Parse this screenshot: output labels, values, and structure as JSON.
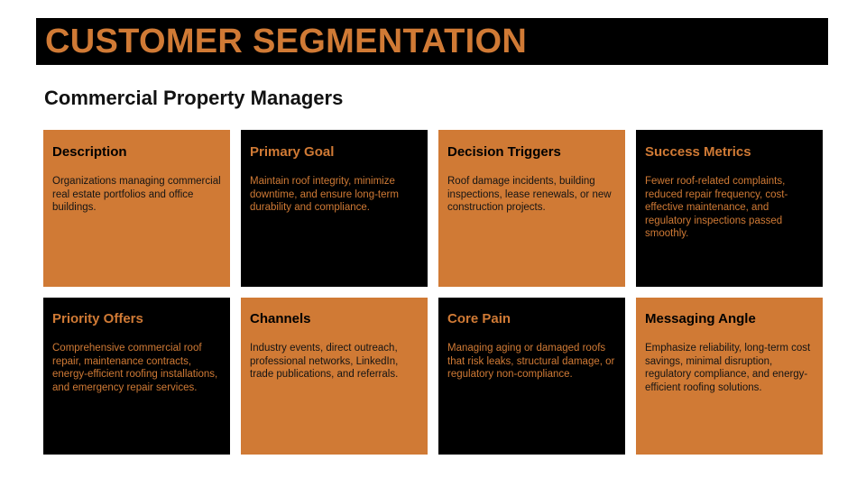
{
  "title": "CUSTOMER SEGMENTATION",
  "subtitle": "Commercial Property Managers",
  "colors": {
    "accent": "#D07A35",
    "dark": "#000000",
    "background": "#FFFFFF"
  },
  "cards": [
    {
      "heading": "Description",
      "body": "Organizations managing commercial real estate portfolios and office buildings."
    },
    {
      "heading": "Primary Goal",
      "body": "Maintain roof integrity, minimize downtime, and ensure long-term durability and compliance."
    },
    {
      "heading": "Decision Triggers",
      "body": "Roof damage incidents, building inspections, lease renewals, or new construction projects."
    },
    {
      "heading": "Success Metrics",
      "body": "Fewer roof-related complaints, reduced repair frequency, cost-effective maintenance, and regulatory inspections passed smoothly."
    },
    {
      "heading": "Priority Offers",
      "body": "Comprehensive commercial roof repair, maintenance contracts, energy-efficient roofing installations, and emergency repair services."
    },
    {
      "heading": "Channels",
      "body": "Industry events, direct outreach, professional networks, LinkedIn, trade publications, and referrals."
    },
    {
      "heading": "Core Pain",
      "body": "Managing aging or damaged roofs that risk leaks, structural damage, or regulatory non-compliance."
    },
    {
      "heading": "Messaging Angle",
      "body": "Emphasize reliability, long-term cost savings, minimal disruption, regulatory compliance, and energy-efficient roofing solutions."
    }
  ]
}
